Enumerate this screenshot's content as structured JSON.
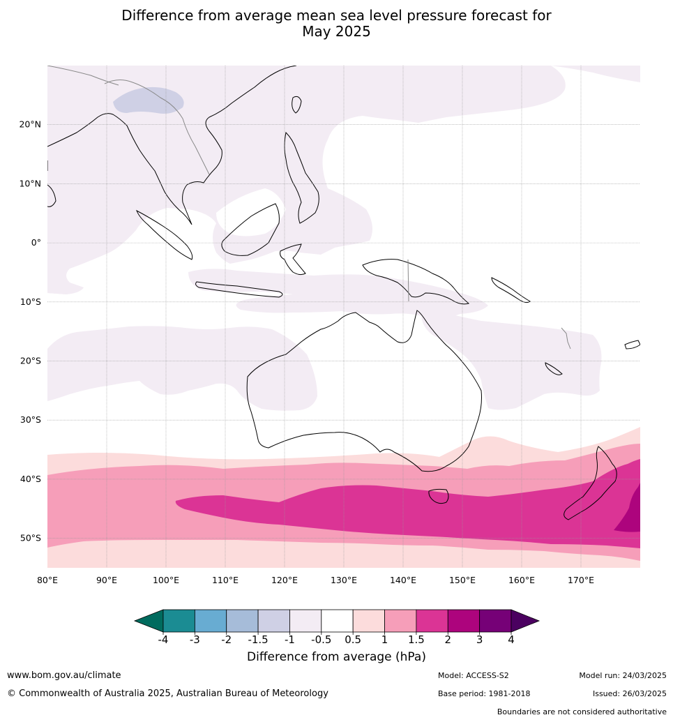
{
  "title_line1": "Difference from average mean sea level pressure forecast for",
  "title_line2": "May 2025",
  "map": {
    "lon_labels": [
      "80°E",
      "90°E",
      "100°E",
      "110°E",
      "120°E",
      "130°E",
      "140°E",
      "150°E",
      "160°E",
      "170°E"
    ],
    "lat_labels": [
      "20°N",
      "10°N",
      "0°",
      "10°S",
      "20°S",
      "30°S",
      "40°S",
      "50°S"
    ],
    "lon_range": [
      80,
      180
    ],
    "lat_range": [
      -55,
      30
    ],
    "regions": [
      {
        "name": "Southeast Asia and West Pacific",
        "category": "-0.5 to -1",
        "color": "#f3ecf4"
      },
      {
        "name": "Himalaya band",
        "category": "-1 to -1.5",
        "color": "#cfd0e5"
      },
      {
        "name": "Southern Ocean outer band",
        "category": "0.5 to 1",
        "color": "#fcdcdc"
      },
      {
        "name": "Southern Ocean band",
        "category": "1 to 1.5",
        "color": "#f69eb9"
      },
      {
        "name": "Southern Ocean core",
        "category": "1.5 to 2",
        "color": "#db3495"
      },
      {
        "name": "East of New Zealand",
        "category": "2 to 3",
        "color": "#ad047d"
      }
    ]
  },
  "colorbar": {
    "title": "Difference from average (hPa)",
    "ticks": [
      "-4",
      "-3",
      "-2",
      "-1.5",
      "-1",
      "-0.5",
      "0.5",
      "1",
      "1.5",
      "2",
      "3",
      "4"
    ],
    "colors": [
      "#1b8c93",
      "#68acd2",
      "#a6bcd9",
      "#cfd0e5",
      "#f3ecf4",
      "#ffffff",
      "#fcdcdc",
      "#f69eb9",
      "#db3495",
      "#ad047d",
      "#760177"
    ],
    "low_extend_color": "#006b5e",
    "high_extend_color": "#4b0160"
  },
  "footer": {
    "url": "www.bom.gov.au/climate",
    "copyright": "© Commonwealth of Australia 2025, Australian Bureau of Meteorology",
    "model": "Model: ACCESS-S2",
    "base_period": "Base period: 1981-2018",
    "model_run": "Model run: 24/03/2025",
    "issued": "Issued: 26/03/2025",
    "boundaries": "Boundaries are not considered authoritative"
  }
}
